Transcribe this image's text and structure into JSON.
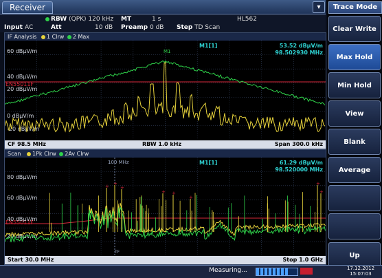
{
  "app": {
    "title": "Receiver"
  },
  "settings": {
    "rbw_label": "RBW",
    "rbw_value": "(QPK) 120 kHz",
    "mt_label": "MT",
    "mt_value": "1 s",
    "transducer": "HL562",
    "input_label": "Input",
    "input_value": "AC",
    "att_label": "Att",
    "att_value": "10 dB",
    "preamp_label": "Preamp",
    "preamp_value": "0 dB",
    "step_label": "Step",
    "step_value": "TD Scan"
  },
  "if_panel": {
    "title": "IF Analysis",
    "trace1": "1 Clrw",
    "trace2": "2 Max",
    "marker": "M1[1]",
    "marker_level": "53.52 dBµV/m",
    "marker_freq": "98.502930 MHz",
    "y_labels": [
      "60 dBµV/m",
      "40 dBµV/m",
      "20 dBµV/m",
      "0 dBµV/m",
      "-20 dBµV/m"
    ],
    "limit_label": "EN55011F",
    "marker_short": "M1",
    "footer_left": "CF 98.5 MHz",
    "footer_center": "RBW 1.0 kHz",
    "footer_right": "Span 300.0 kHz"
  },
  "scan_panel": {
    "title": "Scan",
    "trace1": "1Pk Clrw",
    "trace2": "2Av Clrw",
    "marker": "M1[1]",
    "marker_level": "61.29 dBµV/m",
    "marker_freq": "98.520000 MHz",
    "freq_marker_label": "100 MHz",
    "y_labels": [
      "80 dBµV/m",
      "60 dBµV/m",
      "40 dBµV/m",
      "20 dBµV/m"
    ],
    "limit_label": "EN55011F",
    "tf_label": "TF",
    "footer_left": "Start 30.0 MHz",
    "footer_right": "Stop 1.0 GHz"
  },
  "softkeys": {
    "title": "Trace Mode",
    "items": [
      "Clear Write",
      "Max Hold",
      "Min Hold",
      "View",
      "Blank",
      "Average",
      "",
      "",
      "Up"
    ],
    "active_index": 1
  },
  "status": {
    "measuring": "Measuring...",
    "progress": 0.78,
    "date": "17.12.2012",
    "time": "15:07:03"
  },
  "colors": {
    "trace_yellow": "#e6d23c",
    "trace_green": "#2fd24a",
    "limit_red": "#d8283a",
    "accent": "#3c6fc4"
  }
}
